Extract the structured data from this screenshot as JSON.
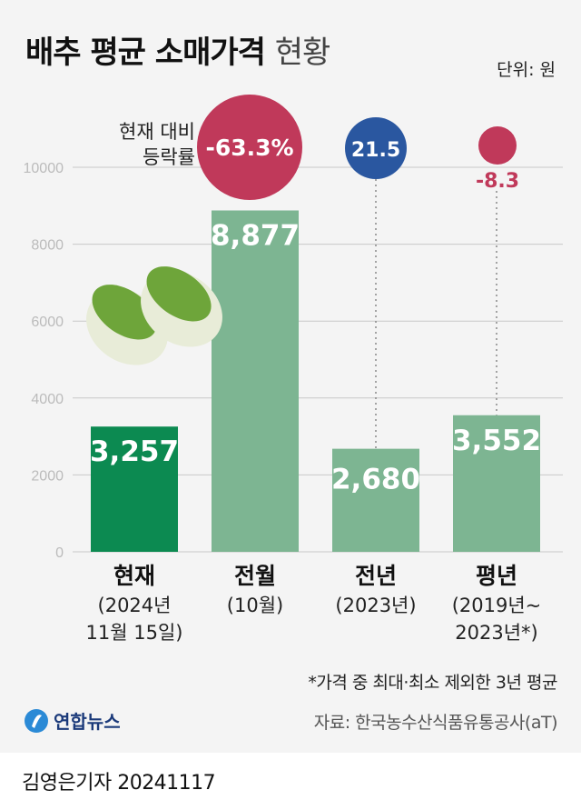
{
  "title": {
    "main": "배추 평균 소매가격",
    "sub": "현황"
  },
  "unit": "단위: 원",
  "chart_data": {
    "type": "bar",
    "categories": [
      {
        "name": "현재",
        "detail": [
          "(2024년",
          "11월 15일)"
        ]
      },
      {
        "name": "전월",
        "detail": [
          "(10월)"
        ]
      },
      {
        "name": "전년",
        "detail": [
          "(2023년)"
        ]
      },
      {
        "name": "평년",
        "detail": [
          "(2019년~",
          "2023년*)"
        ]
      }
    ],
    "values": [
      3257,
      8877,
      2680,
      3552
    ],
    "value_labels": [
      "3,257",
      "8,877",
      "2,680",
      "3,552"
    ],
    "yticks": [
      "0",
      "2000",
      "4000",
      "6000",
      "8000",
      "10000"
    ],
    "ylim": [
      0,
      10000
    ],
    "grid": true,
    "bar_colors": [
      "#0c8a51",
      "#7db592",
      "#7db592",
      "#7db592"
    ],
    "change_label": [
      "현재 대비",
      "등락률"
    ],
    "changes": [
      {
        "value": -63.3,
        "label": "-63.3%",
        "color": "#c0395a"
      },
      {
        "value": 21.5,
        "label": "21.5",
        "color": "#2a57a0"
      },
      {
        "value": -8.3,
        "label": "-8.3",
        "color": "#c0395a"
      }
    ]
  },
  "note": "*가격 중 최대·최소 제외한 3년 평균",
  "source": "자료: 한국농수산식품유통공사(aT)",
  "logo": "연합뉴스",
  "byline": "김영은기자 20241117"
}
